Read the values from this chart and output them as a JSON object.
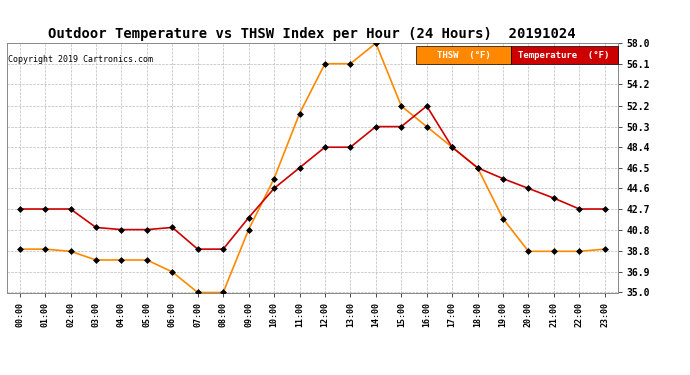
{
  "title": "Outdoor Temperature vs THSW Index per Hour (24 Hours)  20191024",
  "copyright": "Copyright 2019 Cartronics.com",
  "hours": [
    "00:00",
    "01:00",
    "02:00",
    "03:00",
    "04:00",
    "05:00",
    "06:00",
    "07:00",
    "08:00",
    "09:00",
    "10:00",
    "11:00",
    "12:00",
    "13:00",
    "14:00",
    "15:00",
    "16:00",
    "17:00",
    "18:00",
    "19:00",
    "20:00",
    "21:00",
    "22:00",
    "23:00"
  ],
  "temperature": [
    42.7,
    42.7,
    42.7,
    41.0,
    40.8,
    40.8,
    41.0,
    39.0,
    39.0,
    41.9,
    44.6,
    46.5,
    48.4,
    48.4,
    50.3,
    50.3,
    52.2,
    48.4,
    46.5,
    45.5,
    44.6,
    43.7,
    42.7,
    42.7
  ],
  "thsw": [
    39.0,
    39.0,
    38.8,
    38.0,
    38.0,
    38.0,
    36.9,
    35.0,
    35.0,
    40.8,
    45.5,
    51.5,
    56.1,
    56.1,
    58.0,
    52.2,
    50.3,
    48.4,
    46.5,
    41.8,
    38.8,
    38.8,
    38.8,
    39.0
  ],
  "temp_color": "#cc0000",
  "thsw_color": "#ff8800",
  "ylim_min": 35.0,
  "ylim_max": 58.0,
  "yticks": [
    35.0,
    36.9,
    38.8,
    40.8,
    42.7,
    44.6,
    46.5,
    48.4,
    50.3,
    52.2,
    54.2,
    56.1,
    58.0
  ],
  "background_color": "#ffffff",
  "grid_color": "#bbbbbb",
  "title_fontsize": 10,
  "legend_thsw_label": "THSW  (°F)",
  "legend_temp_label": "Temperature  (°F)"
}
